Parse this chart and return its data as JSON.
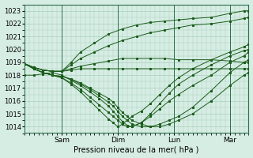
{
  "xlabel": "Pression niveau de la mer( hPa )",
  "ylim": [
    1013.5,
    1023.5
  ],
  "xlim": [
    0,
    96
  ],
  "yticks": [
    1014,
    1015,
    1016,
    1017,
    1018,
    1019,
    1020,
    1021,
    1022,
    1023
  ],
  "xtick_positions": [
    16,
    40,
    64,
    88
  ],
  "xtick_labels": [
    "Sam",
    "Dim",
    "Lun",
    "Mar"
  ],
  "background_color": "#d6ede4",
  "grid_color": "#aacfbc",
  "line_color": "#1a5c1a",
  "lines": [
    {
      "x": [
        0,
        4,
        8,
        12,
        16,
        20,
        24,
        30,
        36,
        42,
        48,
        54,
        60,
        66,
        72,
        80,
        88,
        94,
        96
      ],
      "y": [
        1018.9,
        1018.6,
        1018.4,
        1018.3,
        1018.3,
        1019.0,
        1019.8,
        1020.5,
        1021.2,
        1021.6,
        1021.9,
        1022.1,
        1022.2,
        1022.3,
        1022.4,
        1022.5,
        1022.8,
        1023.0,
        1023.0
      ]
    },
    {
      "x": [
        0,
        4,
        8,
        12,
        16,
        20,
        24,
        30,
        36,
        42,
        48,
        54,
        60,
        66,
        72,
        80,
        88,
        94,
        96
      ],
      "y": [
        1018.9,
        1018.6,
        1018.4,
        1018.3,
        1018.3,
        1018.8,
        1019.3,
        1019.8,
        1020.3,
        1020.7,
        1021.0,
        1021.3,
        1021.5,
        1021.7,
        1021.9,
        1022.0,
        1022.2,
        1022.4,
        1022.5
      ]
    },
    {
      "x": [
        0,
        4,
        8,
        12,
        16,
        20,
        24,
        30,
        36,
        42,
        48,
        54,
        60,
        66,
        72,
        80,
        88,
        94,
        96
      ],
      "y": [
        1018.9,
        1018.6,
        1018.4,
        1018.3,
        1018.3,
        1018.5,
        1018.7,
        1018.9,
        1019.1,
        1019.3,
        1019.3,
        1019.3,
        1019.3,
        1019.2,
        1019.2,
        1019.2,
        1019.1,
        1019.0,
        1019.0
      ]
    },
    {
      "x": [
        0,
        4,
        8,
        12,
        16,
        20,
        24,
        30,
        36,
        42,
        48,
        54,
        60,
        66,
        72,
        80,
        88,
        94,
        96
      ],
      "y": [
        1018.9,
        1018.6,
        1018.4,
        1018.3,
        1018.3,
        1018.4,
        1018.5,
        1018.5,
        1018.5,
        1018.5,
        1018.5,
        1018.5,
        1018.5,
        1018.5,
        1018.5,
        1018.5,
        1018.5,
        1018.5,
        1018.5
      ]
    },
    {
      "x": [
        0,
        4,
        8,
        12,
        16,
        20,
        24,
        28,
        32,
        36,
        38,
        40,
        42,
        44,
        46,
        50,
        54,
        58,
        62,
        66,
        72,
        80,
        88,
        94,
        96
      ],
      "y": [
        1018.9,
        1018.5,
        1018.2,
        1018.0,
        1017.9,
        1017.7,
        1017.4,
        1017.0,
        1016.6,
        1016.2,
        1015.9,
        1015.5,
        1015.1,
        1014.8,
        1014.5,
        1014.2,
        1014.0,
        1014.0,
        1014.2,
        1014.5,
        1015.0,
        1016.0,
        1017.2,
        1018.0,
        1018.2
      ]
    },
    {
      "x": [
        0,
        4,
        8,
        12,
        16,
        20,
        24,
        28,
        32,
        36,
        38,
        40,
        42,
        44,
        46,
        50,
        54,
        58,
        62,
        66,
        72,
        80,
        88,
        94,
        96
      ],
      "y": [
        1018.9,
        1018.5,
        1018.2,
        1018.0,
        1017.9,
        1017.7,
        1017.3,
        1016.9,
        1016.4,
        1015.9,
        1015.6,
        1015.2,
        1014.8,
        1014.5,
        1014.2,
        1014.0,
        1014.0,
        1014.2,
        1014.5,
        1014.8,
        1015.5,
        1016.8,
        1018.2,
        1019.0,
        1019.2
      ]
    },
    {
      "x": [
        0,
        4,
        8,
        12,
        16,
        20,
        24,
        28,
        32,
        36,
        38,
        40,
        42,
        44,
        46,
        50,
        54,
        58,
        62,
        66,
        72,
        80,
        88,
        94,
        96
      ],
      "y": [
        1018.0,
        1018.0,
        1018.1,
        1018.2,
        1018.0,
        1017.6,
        1017.2,
        1016.7,
        1016.2,
        1015.6,
        1015.2,
        1014.8,
        1014.4,
        1014.1,
        1014.0,
        1014.3,
        1014.8,
        1015.4,
        1016.0,
        1016.5,
        1017.2,
        1018.0,
        1019.0,
        1019.5,
        1019.8
      ]
    },
    {
      "x": [
        0,
        4,
        8,
        12,
        16,
        20,
        24,
        28,
        32,
        36,
        38,
        40,
        42,
        44,
        46,
        50,
        54,
        58,
        62,
        66,
        72,
        80,
        88,
        94,
        96
      ],
      "y": [
        1018.9,
        1018.5,
        1018.2,
        1018.0,
        1017.8,
        1017.4,
        1016.9,
        1016.3,
        1015.7,
        1015.1,
        1014.8,
        1014.5,
        1014.2,
        1014.0,
        1014.0,
        1014.3,
        1015.0,
        1015.8,
        1016.6,
        1017.3,
        1018.0,
        1018.8,
        1019.5,
        1019.9,
        1020.0
      ]
    },
    {
      "x": [
        0,
        4,
        8,
        12,
        16,
        20,
        24,
        28,
        32,
        36,
        38,
        40,
        42,
        44,
        46,
        50,
        54,
        58,
        62,
        66,
        72,
        80,
        88,
        94,
        96
      ],
      "y": [
        1018.9,
        1018.5,
        1018.2,
        1018.0,
        1017.8,
        1017.3,
        1016.7,
        1016.0,
        1015.3,
        1014.6,
        1014.3,
        1014.0,
        1014.2,
        1014.5,
        1014.8,
        1015.2,
        1015.8,
        1016.5,
        1017.2,
        1017.8,
        1018.5,
        1019.2,
        1019.8,
        1020.2,
        1020.4
      ]
    }
  ]
}
